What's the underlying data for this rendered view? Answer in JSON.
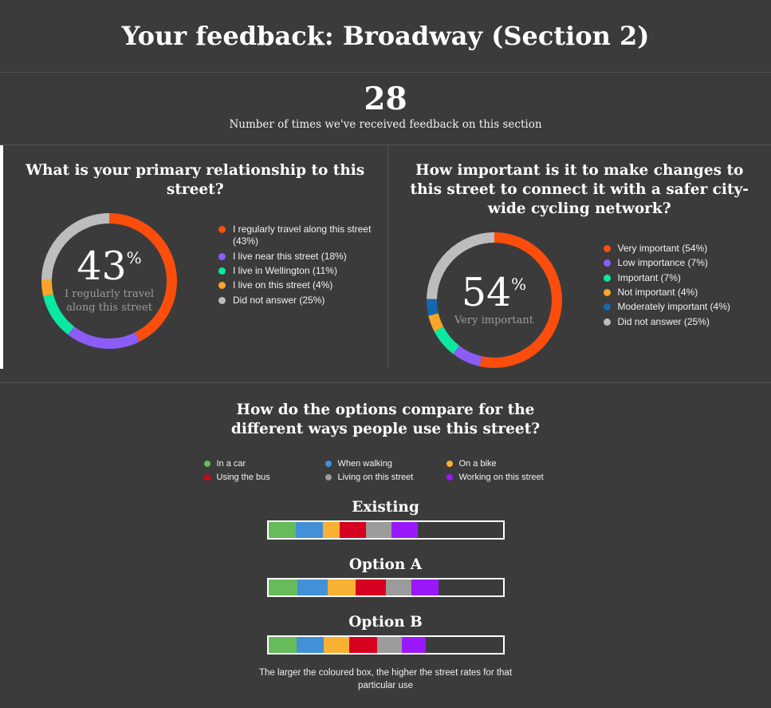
{
  "header": {
    "title": "Your feedback: Broadway (Section 2)"
  },
  "count": {
    "value": "28",
    "caption": "Number of times we've received feedback on this section"
  },
  "theme": {
    "background": "#3b3b3c",
    "divider": "#525252",
    "text": "#ffffff",
    "muted_text": "#9c9c9c",
    "page_background": "#ffffff",
    "bar_border": "#ffffff"
  },
  "chart_data": [
    {
      "type": "pie",
      "variant": "donut",
      "title": "What is your primary relationship to this street?",
      "center": {
        "value": "43",
        "unit": "%",
        "label": "I regularly travel along this street"
      },
      "legend_position": "right",
      "segments": [
        {
          "label": "I regularly travel along this street",
          "value": 43,
          "color": "#fb4d0c"
        },
        {
          "label": "I live near this street",
          "value": 18,
          "color": "#8b5cf6"
        },
        {
          "label": "I live in Wellington",
          "value": 11,
          "color": "#0be8a2"
        },
        {
          "label": "I live on this street",
          "value": 4,
          "color": "#f9a42a"
        },
        {
          "label": "Did not answer",
          "value": 25,
          "color": "#bdbdbd"
        }
      ]
    },
    {
      "type": "pie",
      "variant": "donut",
      "title": "How important is it to make changes to this street to connect it with a safer city-wide cycling network?",
      "center": {
        "value": "54",
        "unit": "%",
        "label": "Very important"
      },
      "legend_position": "right",
      "segments": [
        {
          "label": "Very important",
          "value": 54,
          "color": "#fb4d0c"
        },
        {
          "label": "Low importance",
          "value": 7,
          "color": "#8b5cf6"
        },
        {
          "label": "Important",
          "value": 7,
          "color": "#0be8a2"
        },
        {
          "label": "Not important",
          "value": 4,
          "color": "#f9a42a"
        },
        {
          "label": "Moderately important",
          "value": 4,
          "color": "#1568ad"
        },
        {
          "label": "Did not answer",
          "value": 25,
          "color": "#bdbdbd"
        }
      ]
    },
    {
      "type": "bar",
      "variant": "horizontal-stacked-comparison",
      "title": "How do the options compare for the different ways people use this street?",
      "caption": "The larger the coloured box, the higher the street rates for that particular use",
      "series": [
        {
          "name": "In a car",
          "color": "#66bb5a"
        },
        {
          "name": "When walking",
          "color": "#4190d8"
        },
        {
          "name": "On a bike",
          "color": "#f8b133"
        },
        {
          "name": "Using the bus",
          "color": "#d80021"
        },
        {
          "name": "Living on this street",
          "color": "#9b9b9b"
        },
        {
          "name": "Working on this street",
          "color": "#9a18fb"
        }
      ],
      "bar_scale_pct": 100,
      "bars": [
        {
          "label": "Existing",
          "values_pct": [
            11.7,
            11.6,
            7.2,
            11.3,
            10.6,
            11.3
          ]
        },
        {
          "label": "Option A",
          "values_pct": [
            12.3,
            13.1,
            11.7,
            13.1,
            10.8,
            11.7
          ]
        },
        {
          "label": "Option B",
          "values_pct": [
            12.0,
            11.6,
            10.9,
            11.8,
            10.7,
            10.1
          ]
        }
      ]
    }
  ]
}
